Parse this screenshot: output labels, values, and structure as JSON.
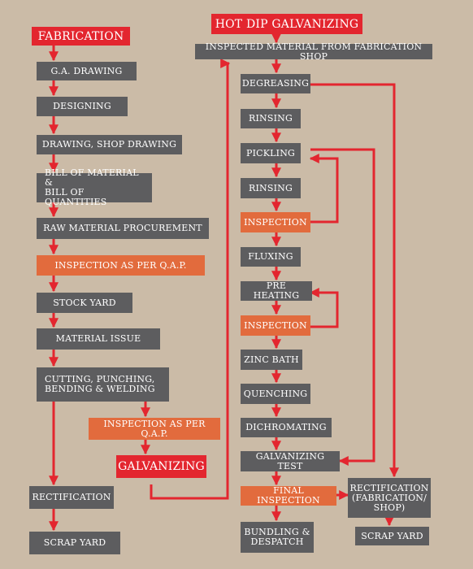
{
  "colors": {
    "background": "#cbbba7",
    "process_box": "#5d5d5f",
    "inspection_box": "#e26b3d",
    "heading_box": "#e3262f",
    "arrow": "#e3262f"
  },
  "fabrication": {
    "title": "FABRICATION",
    "steps": {
      "ga_drawing": "G.A. DRAWING",
      "designing": "DESIGNING",
      "shop_drawing": "DRAWING, SHOP DRAWING",
      "bill_of_material": "BILL OF MATERIAL &\nBILL OF QUANTITIES",
      "raw_material": "RAW MATERIAL PROCUREMENT",
      "inspection_qap_1": "INSPECTION AS PER Q.A.P.",
      "stock_yard": "STOCK YARD",
      "material_issue": "MATERIAL ISSUE",
      "cutting": "CUTTING, PUNCHING,\nBENDING & WELDING",
      "inspection_qap_2": "INSPECTION AS PER Q.A.P.",
      "galvanizing": "GALVANIZING",
      "rectification": "RECTIFICATION",
      "scrap_yard": "SCRAP YARD"
    }
  },
  "hot_dip": {
    "title": "HOT DIP GALVANIZING",
    "steps": {
      "inspected_material": "INSPECTED MATERIAL FROM FABRICATION SHOP",
      "degreasing": "DEGREASING",
      "rinsing_1": "RINSING",
      "pickling": "PICKLING",
      "rinsing_2": "RINSING",
      "inspection_1": "INSPECTION",
      "fluxing": "FLUXING",
      "pre_heating": "PRE HEATING",
      "inspection_2": "INSPECTION",
      "zinc_bath": "ZINC BATH",
      "quenching": "QUENCHING",
      "dichromating": "DICHROMATING",
      "galvanizing_test": "GALVANIZING TEST",
      "final_inspection": "FINAL INSPECTION",
      "bundling": "BUNDLING &\nDESPATCH",
      "rectification_fab": "RECTIFICATION\n(FABRICATION/\nSHOP)",
      "scrap_yard": "SCRAP YARD"
    }
  }
}
